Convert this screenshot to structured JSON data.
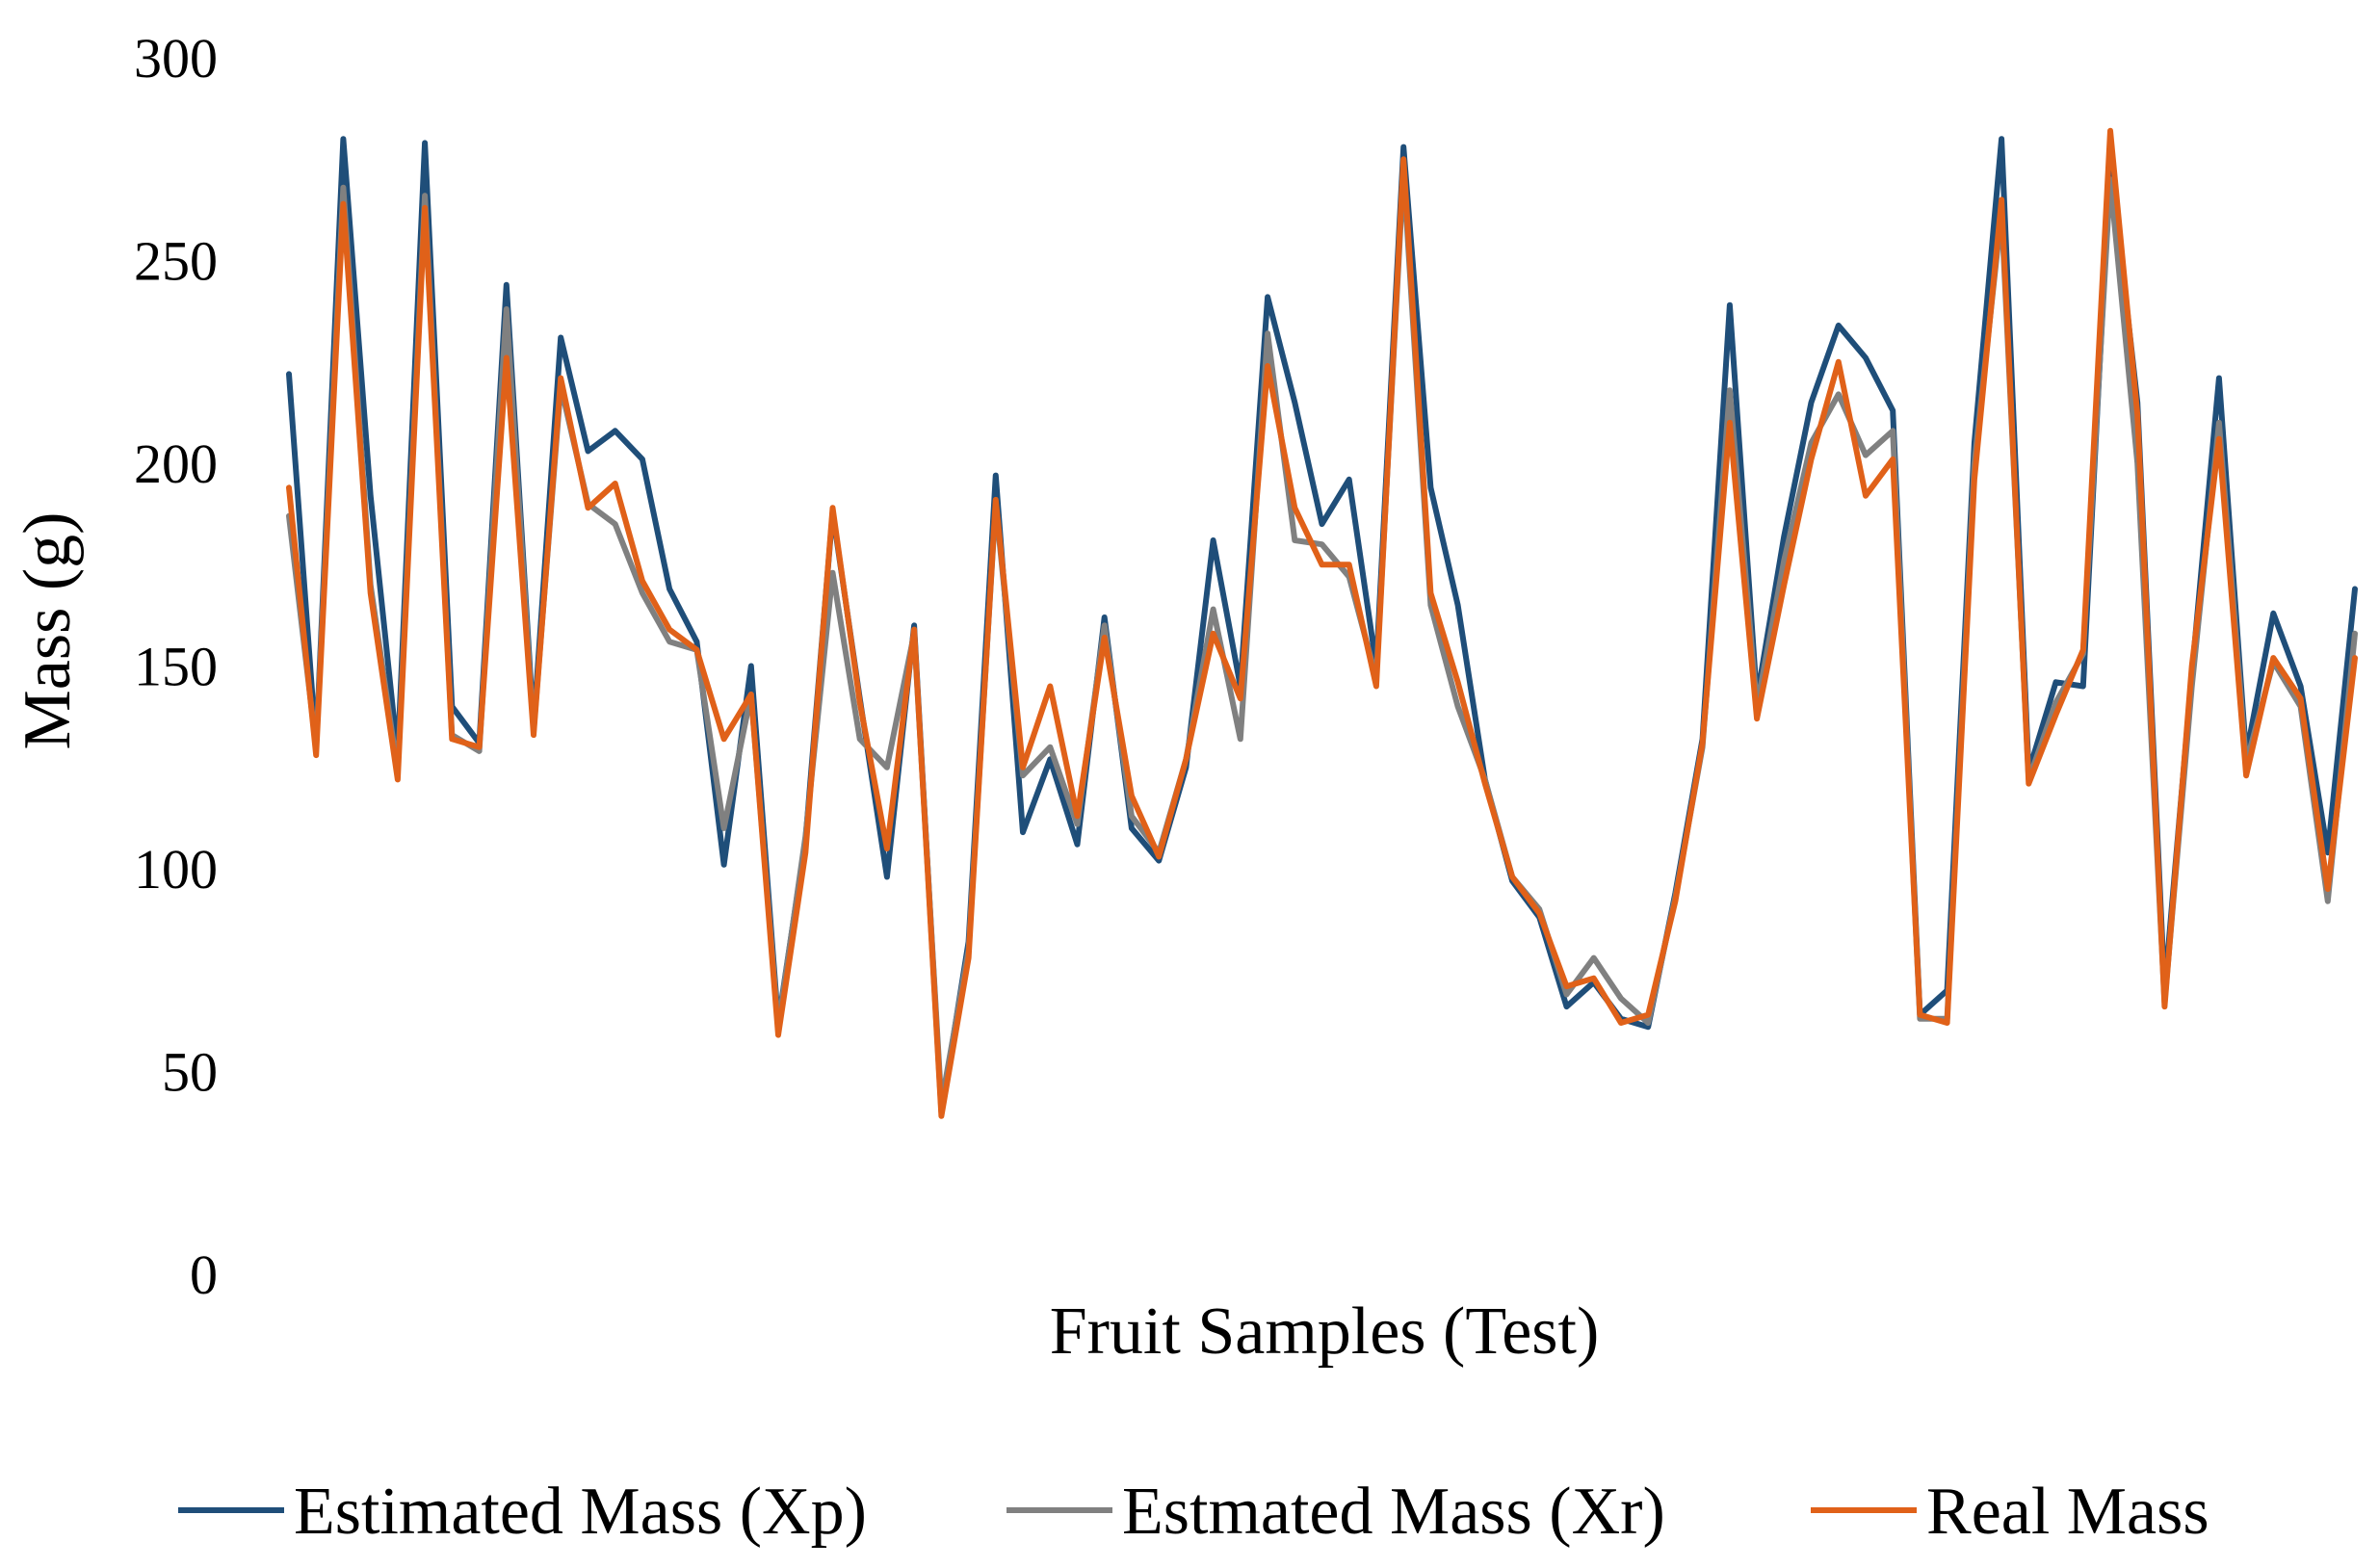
{
  "chart_data": {
    "type": "line",
    "title": "",
    "xlabel": "Fruit Samples (Test)",
    "ylabel": "Mass (g)",
    "ylim": [
      0,
      300
    ],
    "yticks": [
      0,
      50,
      100,
      150,
      200,
      250,
      300
    ],
    "grid": false,
    "legend_position": "bottom",
    "sample_count": 77,
    "series": [
      {
        "name": "Estimated Mass (Xp)",
        "color": "#1f4e79",
        "values": [
          222,
          130,
          280,
          192,
          128,
          279,
          140,
          131,
          244,
          135,
          231,
          203,
          208,
          201,
          169,
          156,
          101,
          150,
          62,
          107,
          188,
          142,
          98,
          160,
          40,
          82,
          197,
          109,
          127,
          106,
          162,
          110,
          102,
          125,
          181,
          145,
          241,
          215,
          185,
          196,
          150,
          278,
          194,
          165,
          122,
          97,
          88,
          66,
          72,
          63,
          61,
          94,
          132,
          239,
          142,
          182,
          215,
          234,
          226,
          213,
          64,
          70,
          205,
          280,
          124,
          146,
          145,
          275,
          215,
          70,
          148,
          221,
          128,
          163,
          145,
          104,
          169
        ]
      },
      {
        "name": "Estmated Mass (Xr)",
        "color": "#808080",
        "values": [
          187,
          130,
          268,
          170,
          124,
          266,
          133,
          129,
          238,
          134,
          219,
          190,
          185,
          168,
          156,
          154,
          110,
          143,
          61,
          108,
          173,
          132,
          125,
          158,
          42,
          80,
          190,
          123,
          130,
          111,
          160,
          113,
          104,
          127,
          164,
          132,
          232,
          181,
          180,
          172,
          147,
          272,
          165,
          140,
          122,
          98,
          90,
          69,
          78,
          68,
          62,
          93,
          130,
          218,
          140,
          176,
          205,
          217,
          202,
          208,
          63,
          63,
          200,
          262,
          122,
          141,
          153,
          270,
          200,
          67,
          145,
          210,
          126,
          151,
          140,
          92,
          158
        ]
      },
      {
        "name": "Real Mass",
        "color": "#e06119",
        "values": [
          194,
          128,
          264,
          168,
          122,
          263,
          132,
          130,
          226,
          133,
          221,
          189,
          195,
          171,
          159,
          154,
          132,
          143,
          59,
          104,
          189,
          141,
          105,
          159,
          39,
          78,
          191,
          125,
          145,
          113,
          157,
          118,
          103,
          127,
          158,
          142,
          224,
          189,
          175,
          175,
          145,
          275,
          168,
          146,
          121,
          98,
          89,
          71,
          73,
          62,
          64,
          92,
          131,
          210,
          137,
          170,
          201,
          225,
          192,
          201,
          64,
          62,
          196,
          265,
          121,
          138,
          154,
          282,
          212,
          66,
          150,
          206,
          123,
          152,
          142,
          95,
          152
        ]
      }
    ]
  }
}
